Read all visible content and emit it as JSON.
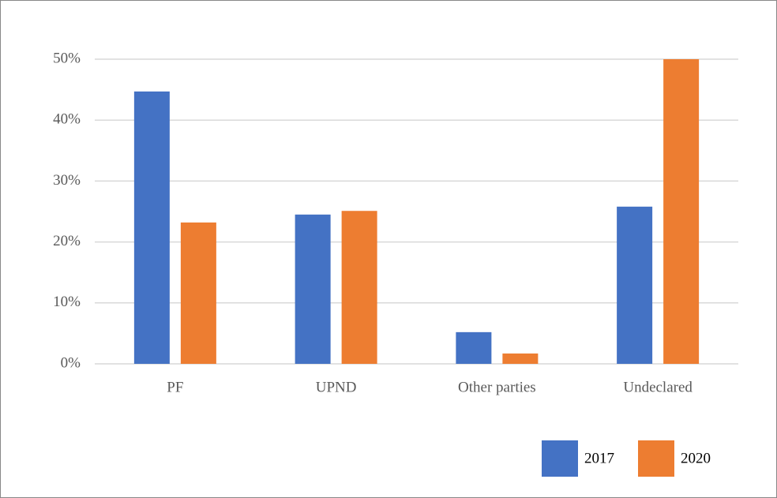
{
  "chart_data": {
    "type": "bar",
    "categories": [
      "PF",
      "UPND",
      "Other parties",
      "Undeclared"
    ],
    "series": [
      {
        "name": "2017",
        "color": "#4472c4",
        "values": [
          44.7,
          24.5,
          5.2,
          25.8
        ]
      },
      {
        "name": "2020",
        "color": "#ed7d31",
        "values": [
          23.2,
          25.1,
          1.7,
          50.0
        ]
      }
    ],
    "ylim": [
      0,
      50
    ],
    "yticks": [
      {
        "value": 0,
        "label": "0%"
      },
      {
        "value": 10,
        "label": "10%"
      },
      {
        "value": 20,
        "label": "20%"
      },
      {
        "value": 30,
        "label": "30%"
      },
      {
        "value": 40,
        "label": "40%"
      },
      {
        "value": 50,
        "label": "50%"
      }
    ],
    "grid": true,
    "legend": "bottom-right"
  }
}
